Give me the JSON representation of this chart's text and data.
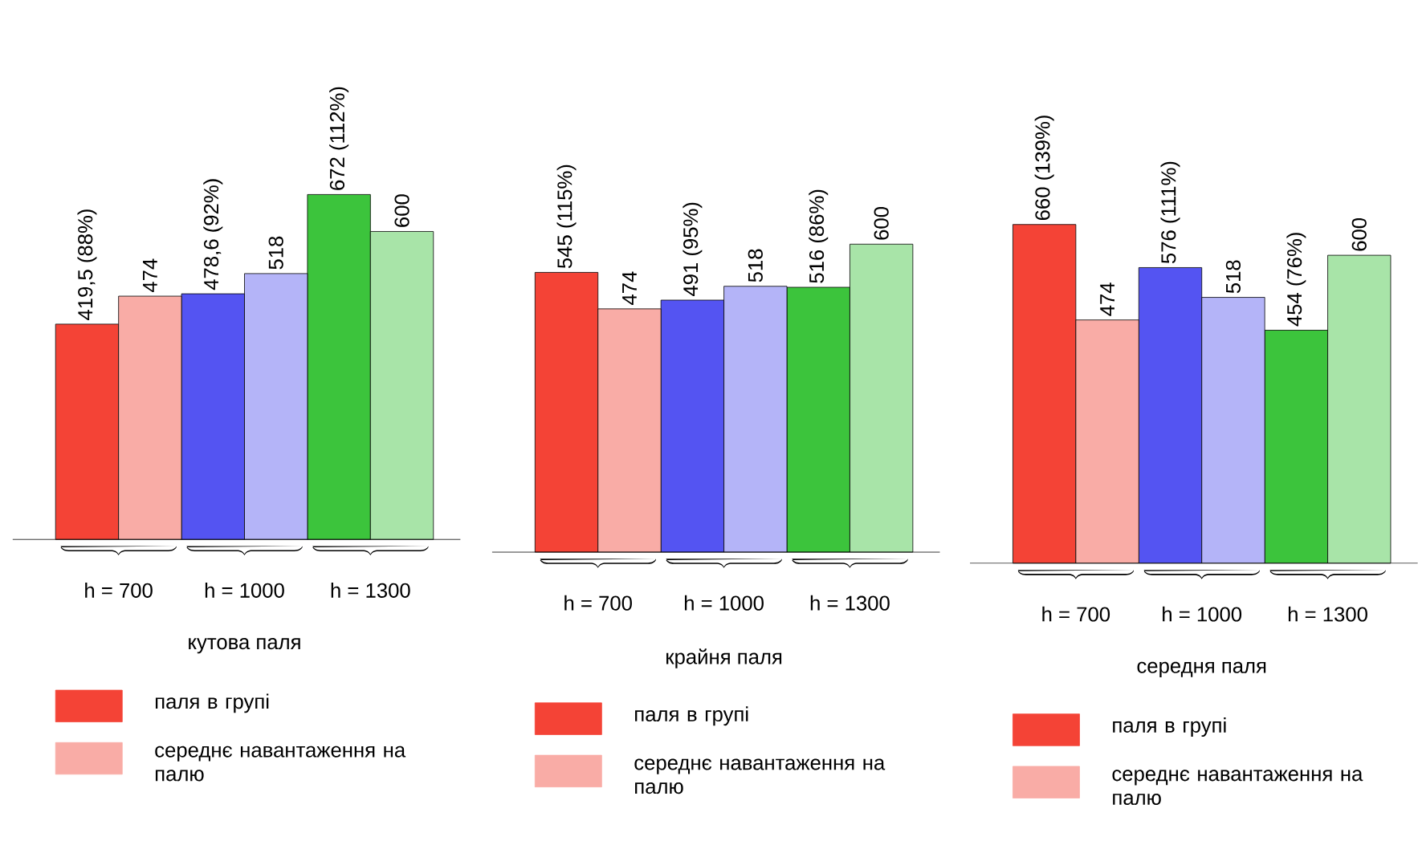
{
  "chart_data": [
    {
      "type": "bar",
      "xlabel": "кутова паля",
      "legend": "bottom",
      "categories": [
        "h = 700",
        "h = 1000",
        "h = 1300"
      ],
      "series": [
        {
          "name": "паля в групі",
          "colors": [
            "#f44336",
            "#5454f2",
            "#3cc43c"
          ],
          "values": [
            419.5,
            478.6,
            672
          ],
          "value_labels": [
            "419,5 (88%)",
            "478,6 (92%)",
            "672 (112%)"
          ]
        },
        {
          "name": "середнє навантаження на палю",
          "colors": [
            "#f9aca6",
            "#b4b4f8",
            "#a8e4a8"
          ],
          "values": [
            474,
            518,
            600
          ],
          "value_labels": [
            "474",
            "518",
            "600"
          ]
        }
      ]
    },
    {
      "type": "bar",
      "xlabel": "крайня паля",
      "legend": "bottom",
      "categories": [
        "h = 700",
        "h = 1000",
        "h = 1300"
      ],
      "series": [
        {
          "name": "паля в групі",
          "colors": [
            "#f44336",
            "#5454f2",
            "#3cc43c"
          ],
          "values": [
            545,
            491,
            516
          ],
          "value_labels": [
            "545 (115%)",
            "491 (95%)",
            "516 (86%)"
          ]
        },
        {
          "name": "середнє навантаження на палю",
          "colors": [
            "#f9aca6",
            "#b4b4f8",
            "#a8e4a8"
          ],
          "values": [
            474,
            518,
            600
          ],
          "value_labels": [
            "474",
            "518",
            "600"
          ]
        }
      ]
    },
    {
      "type": "bar",
      "xlabel": "середня паля",
      "legend": "bottom",
      "categories": [
        "h = 700",
        "h = 1000",
        "h = 1300"
      ],
      "series": [
        {
          "name": "паля в групі",
          "colors": [
            "#f44336",
            "#5454f2",
            "#3cc43c"
          ],
          "values": [
            660,
            576,
            454
          ],
          "value_labels": [
            "660 (139%)",
            "576 (111%)",
            "454 (76%)"
          ]
        },
        {
          "name": "середнє навантаження на палю",
          "colors": [
            "#f9aca6",
            "#b4b4f8",
            "#a8e4a8"
          ],
          "values": [
            474,
            518,
            600
          ],
          "value_labels": [
            "474",
            "518",
            "600"
          ]
        }
      ]
    }
  ]
}
